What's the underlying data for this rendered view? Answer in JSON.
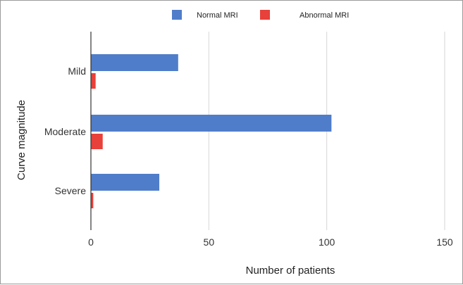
{
  "chart_data": {
    "type": "bar",
    "orientation": "horizontal",
    "categories": [
      "Mild",
      "Moderate",
      "Severe"
    ],
    "series": [
      {
        "name": "Normal MRI",
        "values": [
          37,
          102,
          29
        ],
        "color": "#4f7dc9"
      },
      {
        "name": "Abnormal MRI",
        "values": [
          2,
          5,
          1
        ],
        "color": "#e8403a"
      }
    ],
    "xlabel": "Number of patients",
    "ylabel": "Curve magnitude",
    "xlim": [
      0,
      150
    ],
    "xticks": [
      "0",
      "50",
      "100",
      "150"
    ],
    "grid": "vertical",
    "legend_position": "top"
  }
}
